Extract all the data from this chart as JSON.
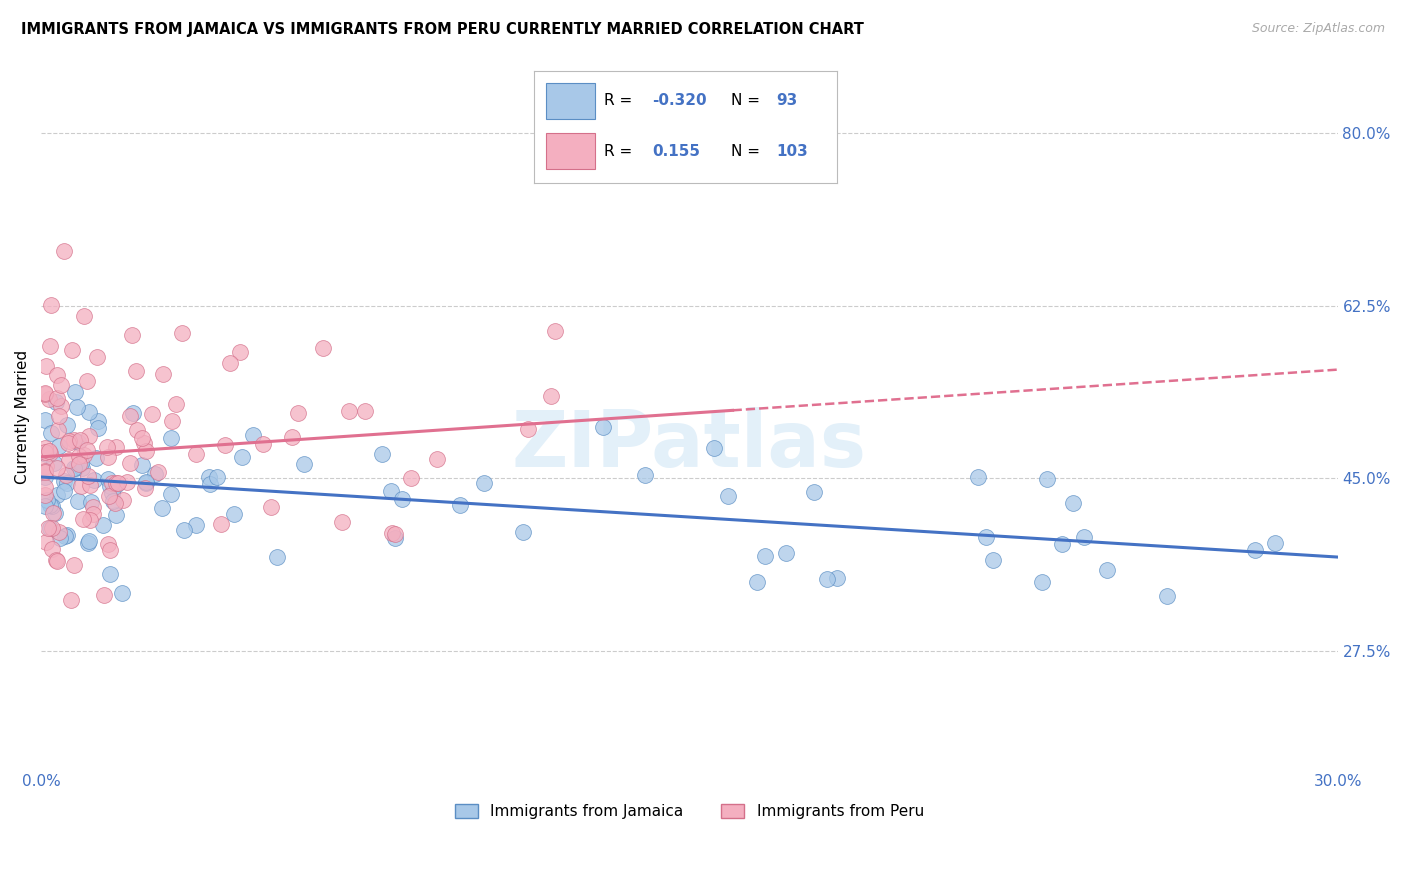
{
  "title": "IMMIGRANTS FROM JAMAICA VS IMMIGRANTS FROM PERU CURRENTLY MARRIED CORRELATION CHART",
  "source": "Source: ZipAtlas.com",
  "ylabel": "Currently Married",
  "x_min": 0.0,
  "x_max": 0.3,
  "y_min": 0.155,
  "y_max": 0.87,
  "x_ticks": [
    0.0,
    0.05,
    0.1,
    0.15,
    0.2,
    0.25,
    0.3
  ],
  "x_tick_labels": [
    "0.0%",
    "",
    "",
    "",
    "",
    "",
    "30.0%"
  ],
  "y_ticks_right": [
    0.275,
    0.45,
    0.625,
    0.8
  ],
  "y_tick_labels_right": [
    "27.5%",
    "45.0%",
    "62.5%",
    "80.0%"
  ],
  "watermark": "ZIPatlas",
  "color_jamaica": "#a8c8e8",
  "color_peru": "#f4afc0",
  "color_jamaica_edge": "#5b8ec4",
  "color_peru_edge": "#d4708a",
  "color_jamaica_line": "#4472c4",
  "color_peru_line": "#e07090",
  "color_axis_labels": "#4472c4",
  "legend_text_color": "#4472c4",
  "r_jamaica": -0.32,
  "n_jamaica": 93,
  "r_peru": 0.155,
  "n_peru": 103,
  "seed_jamaica": 7777,
  "seed_peru": 8888
}
